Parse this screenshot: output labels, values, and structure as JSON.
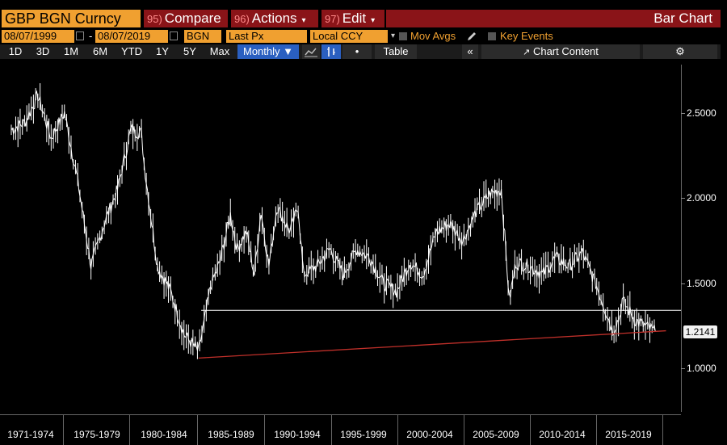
{
  "toolbar": {
    "ticker": "GBP BGN Curncy",
    "compare_num": "95)",
    "compare_label": "Compare",
    "actions_num": "96)",
    "actions_label": "Actions",
    "edit_num": "97)",
    "edit_label": "Edit",
    "chart_title": "Bar Chart",
    "caret": "▾"
  },
  "params": {
    "start_date": "08/07/1999",
    "range_dash": "-",
    "end_date": "08/07/2019",
    "source": "BGN",
    "field": "Last Px",
    "currency": "Local CCY",
    "mov_avgs": "Mov Avgs",
    "key_events": "Key Events"
  },
  "period_bar": {
    "periods": [
      "1D",
      "3D",
      "1M",
      "6M",
      "YTD",
      "1Y",
      "5Y",
      "Max"
    ],
    "frequency": "Monthly ▼",
    "dot": "•",
    "table": "Table",
    "collapse": "«",
    "chart_content": "Chart Content",
    "gear": "⚙"
  },
  "colors": {
    "orange": "#f0a030",
    "red": "#8a1418",
    "blue": "#2a5fc0",
    "price": "#ffffff",
    "trendline": "#c0302a",
    "support": "#ffffff"
  },
  "chart_data": {
    "type": "bar",
    "series": [
      {
        "x": [
          1971,
          1972,
          1973,
          1974,
          1975,
          1976,
          1977,
          1978,
          1979,
          1980,
          1980.8,
          1981,
          1981.5,
          1982,
          1983,
          1984,
          1985.1,
          1985.6,
          1986,
          1986.7,
          1987.5,
          1988,
          1988.7,
          1989.3,
          1989.8,
          1990.4,
          1991,
          1992,
          1992.6,
          1993,
          1994,
          1995,
          1996,
          1997,
          1998,
          1999,
          2000,
          2001,
          2002,
          2003,
          2004,
          2005,
          2006,
          2007,
          2007.9,
          2008.5,
          2009,
          2010,
          2011,
          2012,
          2013,
          2014,
          2015,
          2016.3,
          2016.8,
          2017,
          2018,
          2019.5
        ],
        "y": [
          2.4,
          2.44,
          2.6,
          2.35,
          2.5,
          2.1,
          1.6,
          1.85,
          2.05,
          2.4,
          2.38,
          2.2,
          1.9,
          1.6,
          1.45,
          1.2,
          1.1,
          1.3,
          1.48,
          1.62,
          1.9,
          1.7,
          1.8,
          1.55,
          1.92,
          1.6,
          1.95,
          1.8,
          1.95,
          1.55,
          1.6,
          1.7,
          1.55,
          1.7,
          1.65,
          1.5,
          1.45,
          1.62,
          1.55,
          1.8,
          1.85,
          1.75,
          1.92,
          2.02,
          2.05,
          1.4,
          1.62,
          1.6,
          1.55,
          1.65,
          1.6,
          1.68,
          1.5,
          1.22,
          1.3,
          1.4,
          1.28,
          1.2141
        ]
      }
    ],
    "ylim": [
      0.8,
      2.8
    ],
    "yticks": [
      "2.5000",
      "2.0000",
      "1.5000",
      "1.0000"
    ],
    "xticks": [
      "1971-1974",
      "1975-1979",
      "1980-1984",
      "1985-1989",
      "1990-1994",
      "1995-1999",
      "2000-2004",
      "2005-2009",
      "2010-2014",
      "2015-2019"
    ],
    "last_value": "1.2141",
    "support_level": 1.34,
    "trendline": {
      "from": [
        1985.1,
        1.06
      ],
      "to": [
        2020.3,
        1.22
      ]
    }
  }
}
